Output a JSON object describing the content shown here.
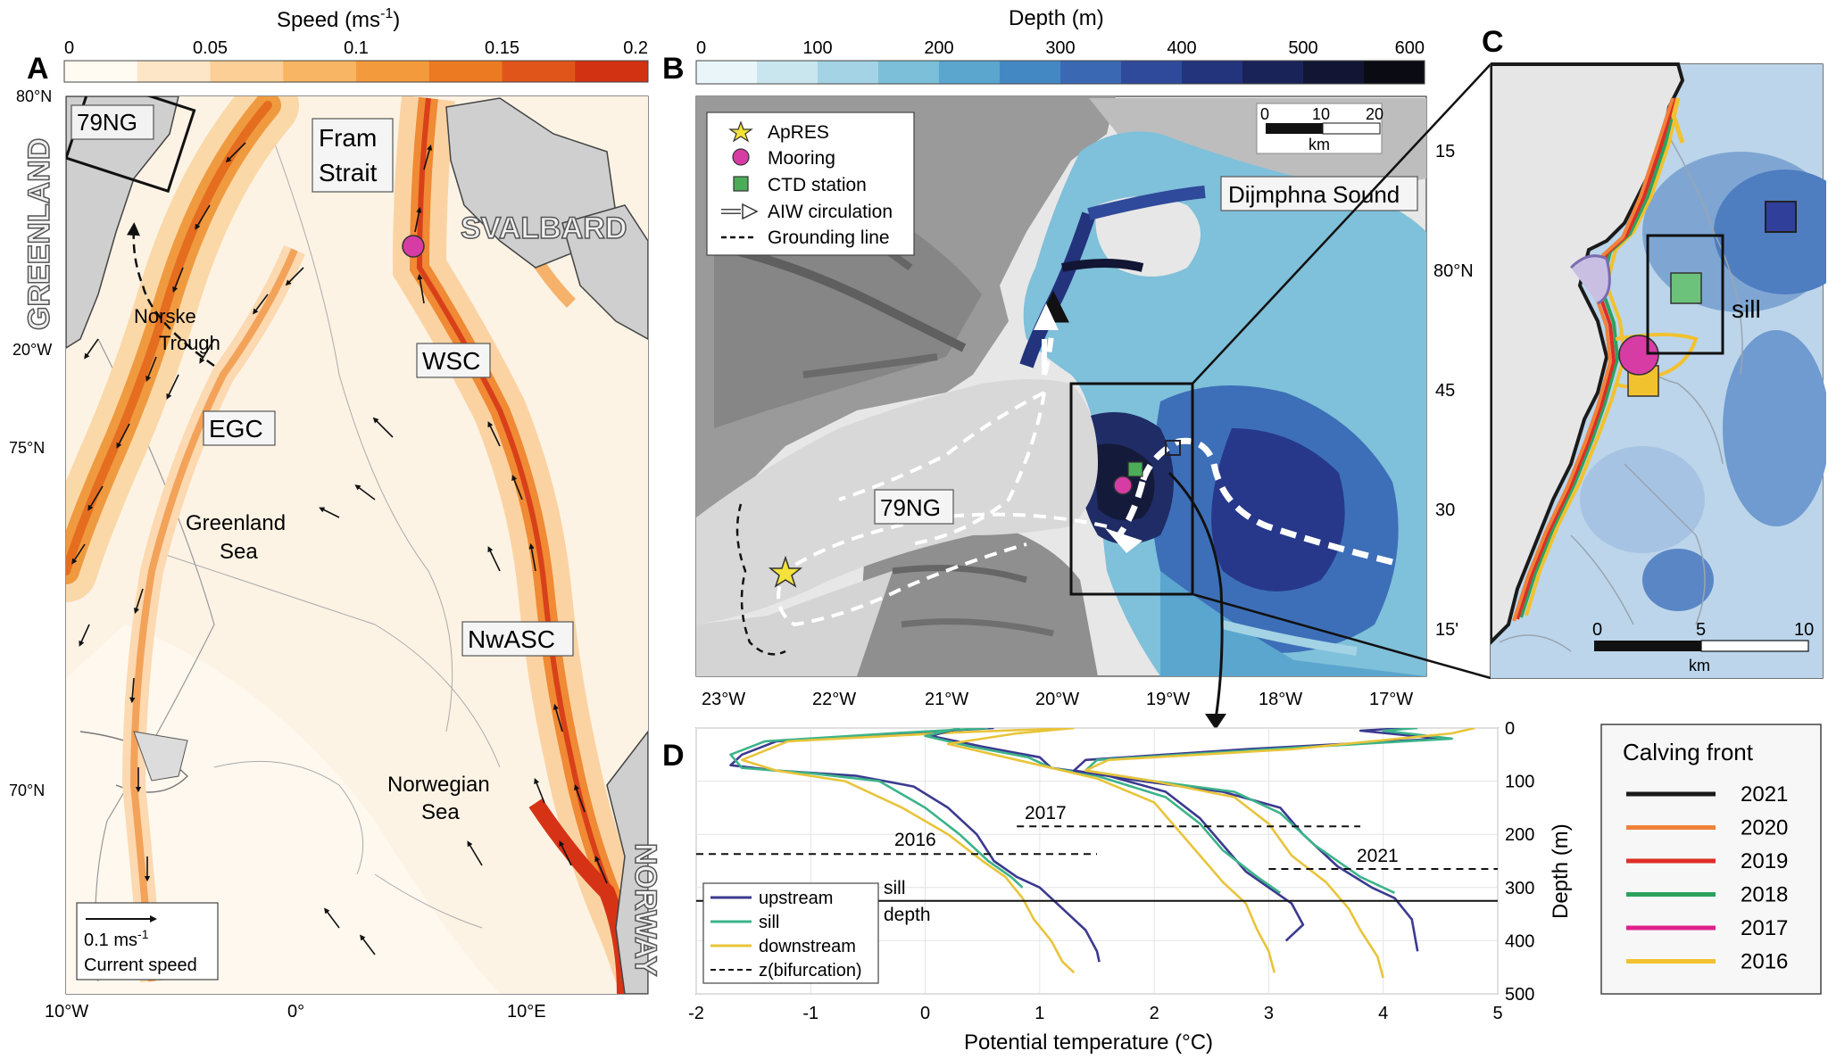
{
  "panels": {
    "a": "A",
    "b": "B",
    "c": "C",
    "d": "D"
  },
  "colorbars": {
    "speed": {
      "title": "Speed (ms",
      "title_sup": "-1",
      "title_close": ")",
      "ticks": [
        "0",
        "0.05",
        "0.1",
        "0.15",
        "0.2"
      ],
      "colors": [
        "#fffaf2",
        "#fde6c7",
        "#fbcf95",
        "#f8b564",
        "#f39a3d",
        "#ec7a22",
        "#e0551a",
        "#d23212"
      ]
    },
    "depth": {
      "title": "Depth (m)",
      "ticks": [
        "0",
        "100",
        "200",
        "300",
        "400",
        "500",
        "600"
      ],
      "colors": [
        "#e9f5f9",
        "#c9e6ef",
        "#a3d3e4",
        "#7cbfd9",
        "#5aa6cf",
        "#4488c3",
        "#3a68b3",
        "#2f4a9a",
        "#23337c",
        "#1a2358",
        "#121634",
        "#0b0b14"
      ]
    }
  },
  "map_a": {
    "box_label": "79NG",
    "lat_labels": [
      "80°N",
      "75°N",
      "70°N"
    ],
    "lon_labels": [
      "10°W",
      "0°",
      "10°E"
    ],
    "lon_20w": "20°W",
    "land": {
      "greenland": "GREENLAND",
      "svalbard": "SVALBARD",
      "norway": "NORWAY"
    },
    "regions": {
      "fram1": "Fram",
      "fram2": "Strait",
      "norske1": "Norske",
      "norske2": "Trough",
      "gs1": "Greenland",
      "gs2": "Sea",
      "ns1": "Norwegian",
      "ns2": "Sea"
    },
    "currents": {
      "wsc": "WSC",
      "egc": "EGC",
      "nwasc": "NwASC"
    },
    "scale": {
      "value": "0.1 ms",
      "sup": "-1",
      "caption": "Current speed"
    }
  },
  "map_b": {
    "legend": [
      "ApRES",
      "Mooring",
      "CTD station",
      "AIW circulation",
      "Grounding line"
    ],
    "labels": {
      "sound": "Dijmphna Sound",
      "glacier": "79NG"
    },
    "scale": {
      "ticks": [
        "0",
        "10",
        "20"
      ],
      "unit": "km"
    },
    "lat_labels": [
      "15",
      "80°N",
      "45",
      "30",
      "15'"
    ],
    "lon_labels": [
      "23°W",
      "22°W",
      "21°W",
      "20°W",
      "19°W",
      "18°W",
      "17°W"
    ]
  },
  "map_c": {
    "label": "sill",
    "scale": {
      "ticks": [
        "0",
        "5",
        "10"
      ],
      "unit": "km"
    }
  },
  "calving": {
    "title": "Calving front",
    "years": [
      {
        "year": "2021",
        "color": "#1b1b1b"
      },
      {
        "year": "2020",
        "color": "#f0823a"
      },
      {
        "year": "2019",
        "color": "#de2d26"
      },
      {
        "year": "2018",
        "color": "#2ca25f"
      },
      {
        "year": "2017",
        "color": "#e0208c"
      },
      {
        "year": "2016",
        "color": "#f2c12e"
      }
    ]
  },
  "chart_data": {
    "type": "line",
    "xlabel": "Potential temperature (°C)",
    "ylabel": "Depth (m)",
    "xlim": [
      -2,
      5
    ],
    "ylim": [
      500,
      0
    ],
    "x_ticks": [
      "-2",
      "-1",
      "0",
      "1",
      "2",
      "3",
      "4",
      "5"
    ],
    "y_ticks": [
      "0",
      "100",
      "200",
      "300",
      "400",
      "500"
    ],
    "annotations": {
      "y2016": "2016",
      "y2017": "2017",
      "y2021": "2021",
      "sill1": "sill",
      "sill2": "depth"
    },
    "legend": [
      "upstream",
      "sill",
      "downstream",
      "z(bifurcation)"
    ],
    "sill_depth": 325,
    "bifurcation": [
      {
        "year": "2016",
        "depth": 237,
        "x": [
          -2,
          1.5
        ]
      },
      {
        "year": "2017",
        "depth": 185,
        "x": [
          0.8,
          3.8
        ]
      },
      {
        "year": "2021",
        "depth": 265,
        "x": [
          3,
          5
        ]
      }
    ],
    "series": [
      {
        "name": "upstream",
        "year": "2016",
        "color": "#3b3a8f",
        "points": [
          [
            0.6,
            0
          ],
          [
            -0.2,
            10
          ],
          [
            -1.3,
            25
          ],
          [
            -1.6,
            50
          ],
          [
            -1.7,
            70
          ],
          [
            -1.3,
            80
          ],
          [
            -0.6,
            90
          ],
          [
            -0.1,
            110
          ],
          [
            0.2,
            150
          ],
          [
            0.45,
            200
          ],
          [
            0.6,
            250
          ],
          [
            0.8,
            280
          ],
          [
            1.0,
            300
          ],
          [
            1.2,
            340
          ],
          [
            1.4,
            380
          ],
          [
            1.5,
            420
          ],
          [
            1.52,
            440
          ]
        ]
      },
      {
        "name": "sill",
        "year": "2016",
        "color": "#3cb38a",
        "points": [
          [
            0.55,
            0
          ],
          [
            -0.3,
            10
          ],
          [
            -1.4,
            25
          ],
          [
            -1.7,
            50
          ],
          [
            -1.6,
            75
          ],
          [
            -1.0,
            85
          ],
          [
            -0.4,
            100
          ],
          [
            0,
            150
          ],
          [
            0.3,
            200
          ],
          [
            0.55,
            250
          ],
          [
            0.75,
            280
          ],
          [
            0.85,
            300
          ]
        ]
      },
      {
        "name": "downstream",
        "year": "2016",
        "color": "#e8c43a",
        "points": [
          [
            1.3,
            0
          ],
          [
            0.3,
            8
          ],
          [
            -1.2,
            25
          ],
          [
            -1.6,
            60
          ],
          [
            -1.3,
            80
          ],
          [
            -0.7,
            100
          ],
          [
            -0.2,
            150
          ],
          [
            0.2,
            200
          ],
          [
            0.5,
            250
          ],
          [
            0.7,
            280
          ],
          [
            0.85,
            320
          ],
          [
            0.95,
            360
          ],
          [
            1.1,
            400
          ],
          [
            1.2,
            440
          ],
          [
            1.3,
            460
          ]
        ]
      },
      {
        "name": "upstream",
        "year": "2017",
        "color": "#3b3a8f",
        "points": [
          [
            0.3,
            0
          ],
          [
            0.05,
            15
          ],
          [
            0.5,
            35
          ],
          [
            1.0,
            55
          ],
          [
            1.1,
            75
          ],
          [
            1.6,
            90
          ],
          [
            2.1,
            120
          ],
          [
            2.4,
            170
          ],
          [
            2.6,
            220
          ],
          [
            2.8,
            270
          ],
          [
            3.0,
            300
          ],
          [
            3.2,
            330
          ],
          [
            3.3,
            370
          ],
          [
            3.15,
            400
          ]
        ]
      },
      {
        "name": "sill",
        "year": "2017",
        "color": "#3cb38a",
        "points": [
          [
            0.3,
            0
          ],
          [
            0,
            15
          ],
          [
            0.4,
            35
          ],
          [
            0.9,
            55
          ],
          [
            1.1,
            75
          ],
          [
            1.5,
            90
          ],
          [
            2.1,
            130
          ],
          [
            2.4,
            180
          ],
          [
            2.6,
            230
          ],
          [
            2.9,
            280
          ],
          [
            3.1,
            310
          ]
        ]
      },
      {
        "name": "downstream",
        "year": "2017",
        "color": "#e8c43a",
        "points": [
          [
            1.3,
            0
          ],
          [
            0.8,
            10
          ],
          [
            0.2,
            30
          ],
          [
            0.6,
            50
          ],
          [
            1.0,
            70
          ],
          [
            1.5,
            95
          ],
          [
            2.0,
            140
          ],
          [
            2.2,
            190
          ],
          [
            2.4,
            240
          ],
          [
            2.6,
            290
          ],
          [
            2.8,
            330
          ],
          [
            2.9,
            380
          ],
          [
            3.0,
            420
          ],
          [
            3.05,
            460
          ]
        ]
      },
      {
        "name": "upstream",
        "year": "2021",
        "color": "#3b3a8f",
        "points": [
          [
            4.2,
            0
          ],
          [
            3.8,
            5
          ],
          [
            4.5,
            20
          ],
          [
            2.8,
            40
          ],
          [
            1.4,
            60
          ],
          [
            1.3,
            80
          ],
          [
            1.9,
            100
          ],
          [
            2.6,
            120
          ],
          [
            3.1,
            150
          ],
          [
            3.3,
            200
          ],
          [
            3.6,
            260
          ],
          [
            3.9,
            300
          ],
          [
            4.1,
            320
          ],
          [
            4.25,
            360
          ],
          [
            4.3,
            420
          ]
        ]
      },
      {
        "name": "sill",
        "year": "2021",
        "color": "#3cb38a",
        "points": [
          [
            4.3,
            0
          ],
          [
            4.0,
            5
          ],
          [
            4.6,
            20
          ],
          [
            3.0,
            40
          ],
          [
            1.5,
            60
          ],
          [
            1.4,
            80
          ],
          [
            2.0,
            100
          ],
          [
            2.7,
            120
          ],
          [
            3.1,
            160
          ],
          [
            3.4,
            220
          ],
          [
            3.8,
            280
          ],
          [
            4.1,
            310
          ]
        ]
      },
      {
        "name": "downstream",
        "year": "2021",
        "color": "#e8c43a",
        "points": [
          [
            4.8,
            0
          ],
          [
            4.6,
            10
          ],
          [
            3.2,
            40
          ],
          [
            1.6,
            60
          ],
          [
            1.4,
            80
          ],
          [
            2.0,
            100
          ],
          [
            2.7,
            130
          ],
          [
            3.0,
            180
          ],
          [
            3.2,
            240
          ],
          [
            3.5,
            290
          ],
          [
            3.7,
            340
          ],
          [
            3.8,
            380
          ],
          [
            3.95,
            430
          ],
          [
            4.0,
            470
          ]
        ]
      }
    ]
  }
}
